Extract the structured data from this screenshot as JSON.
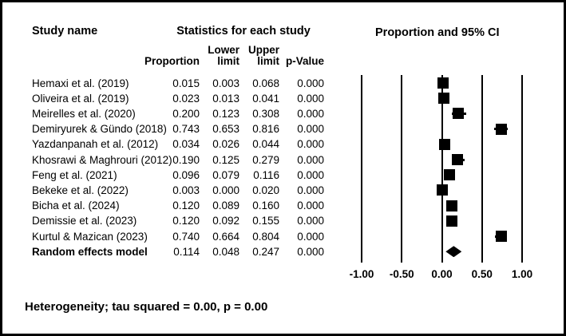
{
  "headers": {
    "study_name": "Study name",
    "statistics": "Statistics for each study"
  },
  "columns": {
    "sub_top": [
      "",
      "Lower",
      "Upper",
      ""
    ],
    "sub_bottom": [
      "Proportion",
      "limit",
      "limit",
      "p-Value"
    ]
  },
  "chart_data": {
    "type": "forest",
    "title": "Proportion and 95% CI",
    "xlabel": "",
    "x_ticks": [
      "-1.00",
      "-0.50",
      "0.00",
      "0.50",
      "1.00"
    ],
    "x_tick_values": [
      -1.0,
      -0.5,
      0.0,
      0.5,
      1.0
    ],
    "x_range": [
      -1.25,
      1.25
    ],
    "grid": "vertical-lines",
    "studies": [
      {
        "name": "Hemaxi et al. (2019)",
        "proportion": "0.015",
        "lower": "0.003",
        "upper": "0.068",
        "p": "0.000"
      },
      {
        "name": "Oliveira et al. (2019)",
        "proportion": "0.023",
        "lower": "0.013",
        "upper": "0.041",
        "p": "0.000"
      },
      {
        "name": "Meirelles et al. (2020)",
        "proportion": "0.200",
        "lower": "0.123",
        "upper": "0.308",
        "p": "0.000"
      },
      {
        "name": "Demiryurek & Gündo (2018)",
        "proportion": "0.743",
        "lower": "0.653",
        "upper": "0.816",
        "p": "0.000"
      },
      {
        "name": "Yazdanpanah et al. (2012)",
        "proportion": "0.034",
        "lower": "0.026",
        "upper": "0.044",
        "p": "0.000"
      },
      {
        "name": "Khosrawi & Maghrouri (2012)",
        "proportion": "0.190",
        "lower": "0.125",
        "upper": "0.279",
        "p": "0.000"
      },
      {
        "name": "Feng et al. (2021)",
        "proportion": "0.096",
        "lower": "0.079",
        "upper": "0.116",
        "p": "0.000"
      },
      {
        "name": "Bekeke et al. (2022)",
        "proportion": "0.003",
        "lower": "0.000",
        "upper": "0.020",
        "p": "0.000"
      },
      {
        "name": "Bicha et al. (2024)",
        "proportion": "0.120",
        "lower": "0.089",
        "upper": "0.160",
        "p": "0.000"
      },
      {
        "name": "Demissie et al. (2023)",
        "proportion": "0.120",
        "lower": "0.092",
        "upper": "0.155",
        "p": "0.000"
      },
      {
        "name": "Kurtul & Mazican (2023)",
        "proportion": "0.740",
        "lower": "0.664",
        "upper": "0.804",
        "p": "0.000"
      }
    ],
    "summary": {
      "name": "Random effects model",
      "proportion": "0.114",
      "lower": "0.048",
      "upper": "0.247",
      "p": "0.000",
      "marker": "diamond"
    }
  },
  "footer": {
    "heterogeneity": "Heterogeneity;  tau squared = 0.00, p = 0.00"
  },
  "colors": {
    "marker": "#000000",
    "text": "#000000",
    "background": "#ffffff",
    "border": "#000000"
  }
}
